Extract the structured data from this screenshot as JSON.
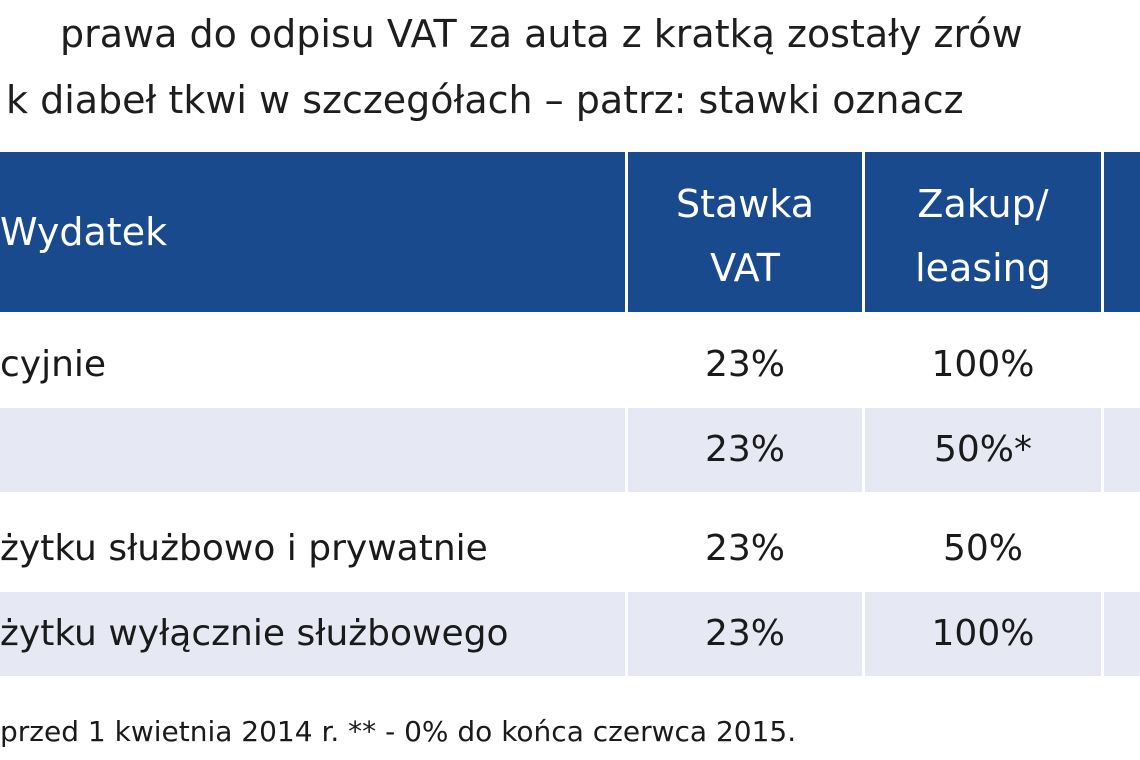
{
  "title": {
    "line1": "prawa do odpisu VAT za auta z kratką zostały zrów",
    "line2": "k diabeł tkwi w szczegółach – patrz: stawki oznacz"
  },
  "table": {
    "header": {
      "col1": "Wydatek",
      "col2_line1": "Stawka",
      "col2_line2": "VAT",
      "col3_line1": "Zakup/",
      "col3_line2": "leasing"
    },
    "rows": [
      {
        "name": "cyjnie",
        "rate": "23%",
        "buy": "100%"
      },
      {
        "name": "",
        "rate": "23%",
        "buy": "50%*"
      },
      {
        "name": "żytku służbowo i prywatnie",
        "rate": "23%",
        "buy": "50%"
      },
      {
        "name": "żytku wyłącznie służbowego",
        "rate": "23%",
        "buy": "100%"
      }
    ]
  },
  "footnote": "przed 1 kwietnia 2014 r.   ** - 0% do końca czerwca 2015.",
  "colors": {
    "header_bg": "#1a4a8e",
    "row_shade": "#e6e8f4"
  }
}
